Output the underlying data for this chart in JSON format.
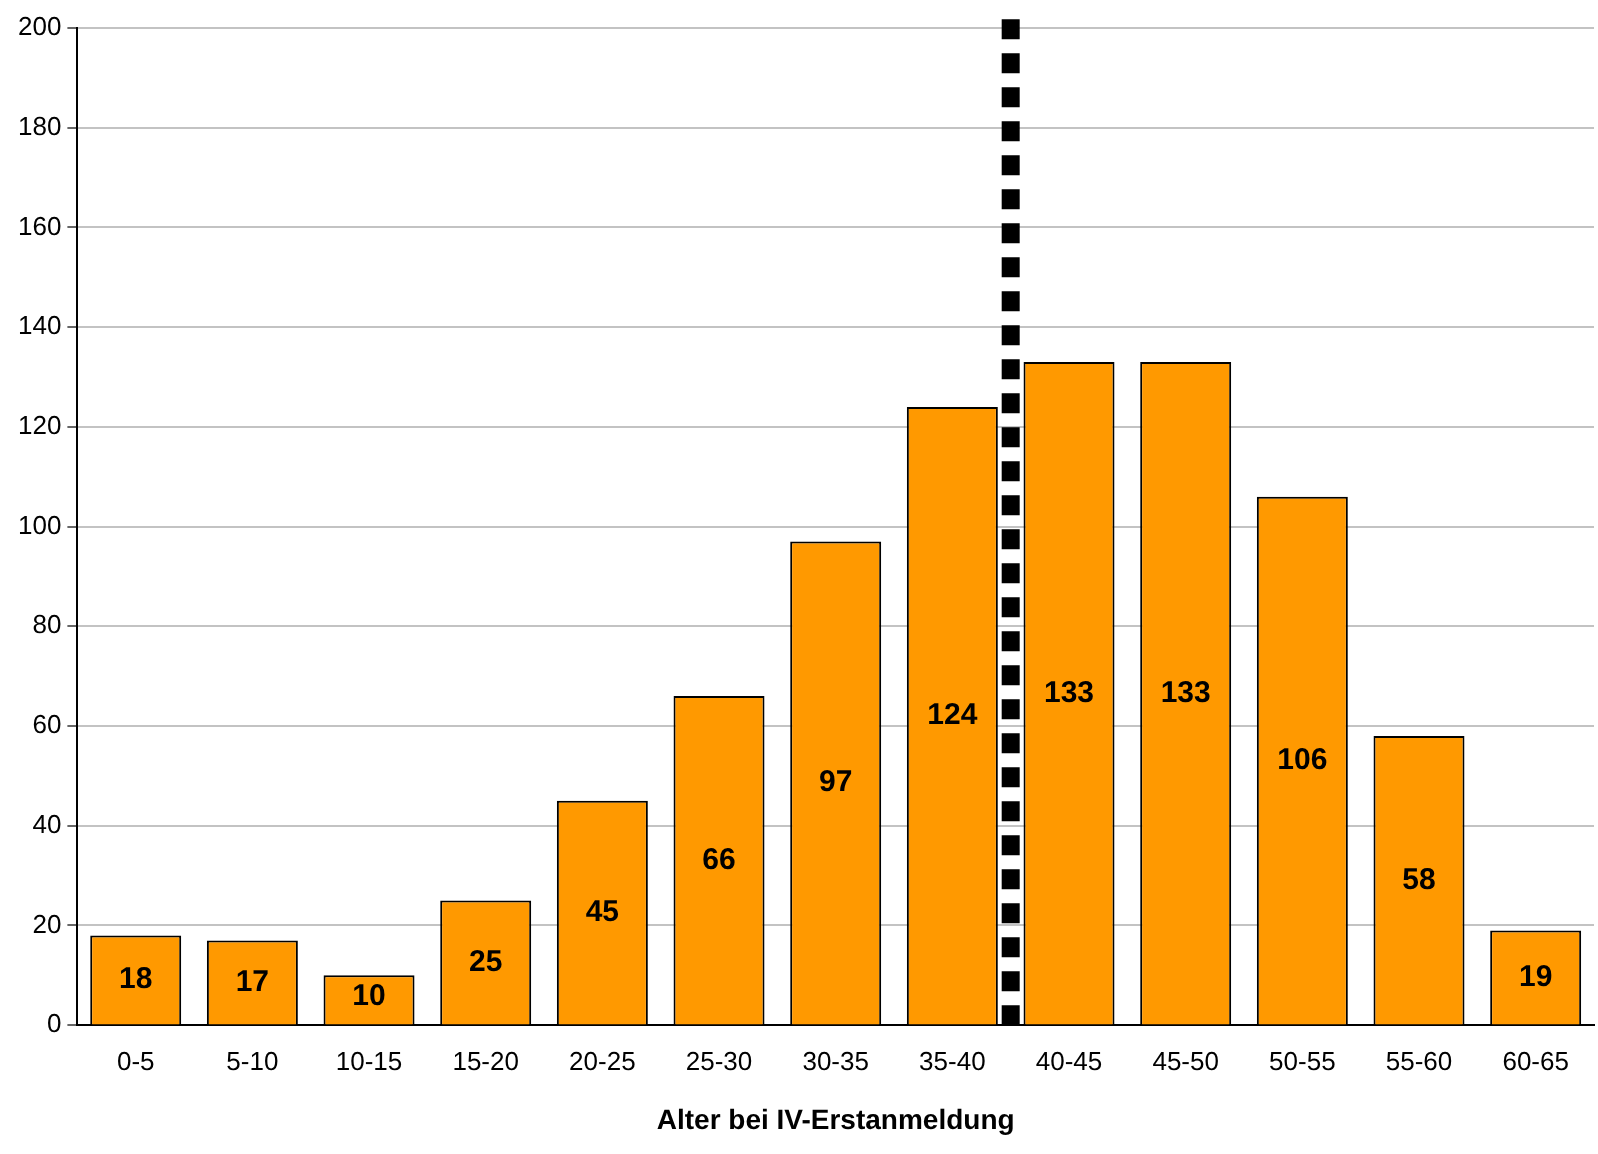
{
  "chart_data": {
    "type": "bar",
    "xlabel": "Alter bei IV-Erstanmeldung",
    "categories": [
      "0-5",
      "5-10",
      "10-15",
      "15-20",
      "20-25",
      "25-30",
      "30-35",
      "35-40",
      "40-45",
      "45-50",
      "50-55",
      "55-60",
      "60-65"
    ],
    "values": [
      18,
      17,
      10,
      25,
      45,
      66,
      97,
      124,
      133,
      133,
      106,
      58,
      19
    ],
    "color": "#ff9900",
    "data_labels": true,
    "ylim": [
      0,
      200
    ],
    "yticks": [
      0,
      20,
      40,
      60,
      80,
      100,
      120,
      140,
      160,
      180,
      200
    ],
    "grid": "y",
    "legend": false,
    "ref_lines": [
      {
        "axis": "x",
        "value": "40-45",
        "color": "#000000",
        "line_style": "dotted"
      }
    ]
  }
}
